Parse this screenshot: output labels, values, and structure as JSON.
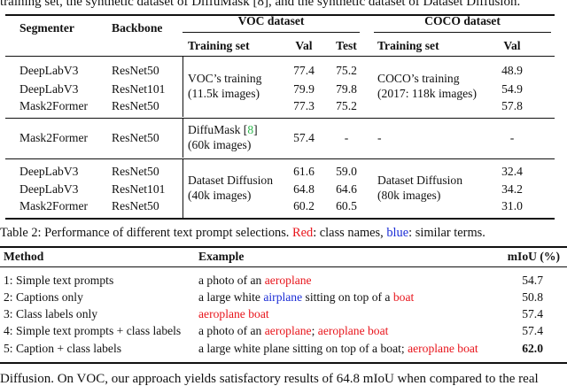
{
  "cut_text": {
    "top": "training set, the synthetic dataset of DiffuMask [8], and the synthetic dataset of Dataset Diffusion.",
    "bottom": "Diffusion. On VOC, our approach yields satisfactory results of 64.8 mIoU when compared to the real"
  },
  "table1": {
    "header": {
      "segmenter": "Segmenter",
      "backbone": "Backbone",
      "voc_group": "VOC dataset",
      "coco_group": "COCO dataset",
      "training_set": "Training set",
      "val": "Val",
      "test": "Test"
    },
    "rows": [
      {
        "segmenter": "DeepLabV3",
        "backbone": "ResNet50",
        "voc_val": "77.4",
        "voc_test": "75.2",
        "coco_val": "48.9"
      },
      {
        "segmenter": "DeepLabV3",
        "backbone": "ResNet101",
        "voc_val": "79.9",
        "voc_test": "79.8",
        "coco_val": "54.9"
      },
      {
        "segmenter": "Mask2Former",
        "backbone": "ResNet50",
        "voc_val": "77.3",
        "voc_test": "75.2",
        "coco_val": "57.8"
      },
      {
        "segmenter": "Mask2Former",
        "backbone": "ResNet50",
        "voc_val": "57.4",
        "voc_test": "-",
        "coco_val": "-"
      },
      {
        "segmenter": "DeepLabV3",
        "backbone": "ResNet50",
        "voc_val": "61.6",
        "voc_test": "59.0",
        "coco_val": "32.4"
      },
      {
        "segmenter": "DeepLabV3",
        "backbone": "ResNet101",
        "voc_val": "64.8",
        "voc_test": "64.6",
        "coco_val": "34.2"
      },
      {
        "segmenter": "Mask2Former",
        "backbone": "ResNet50",
        "voc_val": "60.2",
        "voc_test": "60.5",
        "coco_val": "31.0"
      }
    ],
    "groups": {
      "real_voc_line1": "VOC’s training",
      "real_voc_line2": "(11.5k images)",
      "real_coco_line1": "COCO’s training",
      "real_coco_line2": "(2017: 118k images)",
      "diffumask_line1": "DiffuMask [",
      "diffumask_ref": "8",
      "diffumask_line1_end": "]",
      "diffumask_line2": "(60k images)",
      "diffumask_coco": "-",
      "dd_voc_line1": "Dataset Diffusion",
      "dd_voc_line2": "(40k images)",
      "dd_coco_line1": "Dataset Diffusion",
      "dd_coco_line2": "(80k images)"
    }
  },
  "table2": {
    "caption_prefix": "Table 2: Performance of different text prompt selections.",
    "caption_red": "Red",
    "caption_mid": ": class names,",
    "caption_blue": "blue",
    "caption_end": ": similar terms.",
    "header": {
      "method": "Method",
      "example": "Example",
      "miou": "mIoU (%)"
    },
    "rows": [
      {
        "method": "1: Simple text prompts",
        "ex_a": "a photo of an ",
        "ex_b": "aeroplane",
        "miou": "54.7"
      },
      {
        "method": "2: Captions only",
        "ex_a": "a large white ",
        "ex_b": "airplane",
        "ex_c": " sitting on top of a ",
        "ex_d": "boat",
        "miou": "50.8"
      },
      {
        "method": "3: Class labels only",
        "ex_a": "aeroplane boat",
        "miou": "57.4"
      },
      {
        "method": "4: Simple text prompts + class labels",
        "ex_a": "a photo of an ",
        "ex_b": "aeroplane",
        "ex_c": "; ",
        "ex_d": "aeroplane boat",
        "miou": "57.4"
      },
      {
        "method": "5: Caption + class labels",
        "ex_a": "a large white plane sitting on top of a boat; ",
        "ex_b": "aeroplane boat",
        "miou": "62.0"
      }
    ]
  }
}
